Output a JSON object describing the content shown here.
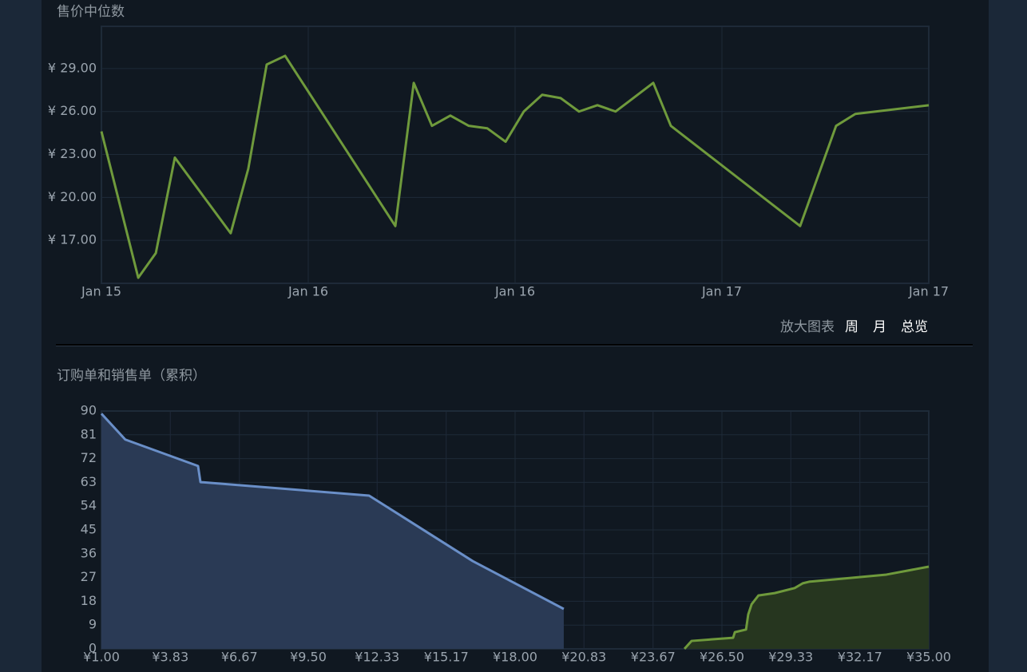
{
  "chart_data": [
    {
      "type": "line",
      "title": "售价中位数",
      "color": "#6f9a3c",
      "grid": true,
      "x": [
        0,
        0.178,
        0.263,
        0.355,
        0.625,
        0.71,
        0.799,
        0.888,
        1.421,
        1.51,
        1.598,
        1.687,
        1.776,
        1.865,
        1.954,
        2.042,
        2.131,
        2.22,
        2.309,
        2.398,
        2.486,
        2.668,
        2.753,
        3.378,
        3.552,
        3.645,
        4
      ],
      "values": [
        24.61,
        14.39,
        16.11,
        22.78,
        17.5,
        22.0,
        29.28,
        29.89,
        18.0,
        28.0,
        25.0,
        25.72,
        25.0,
        24.83,
        23.89,
        26.0,
        27.17,
        26.94,
        26.0,
        26.44,
        26.0,
        28.0,
        25.0,
        18.0,
        25.0,
        25.83,
        26.44
      ],
      "xlim": [
        0,
        4
      ],
      "xticks": [
        {
          "value": 0,
          "label": "Jan 15"
        },
        {
          "value": 1,
          "label": "Jan 16"
        },
        {
          "value": 2,
          "label": "Jan 16"
        },
        {
          "value": 3,
          "label": "Jan 17"
        },
        {
          "value": 4,
          "label": "Jan 17"
        }
      ],
      "ylim": [
        14,
        31.95
      ],
      "yticks": [
        {
          "value": 17,
          "label": "¥ 17.00"
        },
        {
          "value": 20,
          "label": "¥ 20.00"
        },
        {
          "value": 23,
          "label": "¥ 23.00"
        },
        {
          "value": 26,
          "label": "¥ 26.00"
        },
        {
          "value": 29,
          "label": "¥ 29.00"
        }
      ]
    },
    {
      "type": "area",
      "title": "订购单和销售单（累积）",
      "grid": true,
      "series": [
        {
          "color": "#6a8fc8",
          "fill": "#2a3a55",
          "x": [
            1,
            1.98,
            4.97,
            5.07,
            12.0,
            16.26,
            20.0
          ],
          "values": [
            89,
            79.2,
            69.2,
            63.1,
            58.0,
            33.2,
            15.1
          ]
        },
        {
          "color": "#6f9a3c",
          "fill": "#26361f",
          "x": [
            24.96,
            25.25,
            26.96,
            27.03,
            27.49,
            27.58,
            27.72,
            28.0,
            28.67,
            29.49,
            29.82,
            30.08,
            33.26,
            35
          ],
          "values": [
            0,
            3.0,
            4.2,
            6.3,
            7.3,
            13.0,
            16.9,
            20.2,
            21.1,
            23.0,
            24.8,
            25.4,
            28.1,
            31.1
          ]
        }
      ],
      "xlim": [
        1,
        35
      ],
      "xticks": [
        {
          "value": 1,
          "label": "¥1.00"
        },
        {
          "value": 3.83,
          "label": "¥3.83"
        },
        {
          "value": 6.67,
          "label": "¥6.67"
        },
        {
          "value": 9.5,
          "label": "¥9.50"
        },
        {
          "value": 12.33,
          "label": "¥12.33"
        },
        {
          "value": 15.17,
          "label": "¥15.17"
        },
        {
          "value": 18,
          "label": "¥18.00"
        },
        {
          "value": 20.83,
          "label": "¥20.83"
        },
        {
          "value": 23.67,
          "label": "¥23.67"
        },
        {
          "value": 26.5,
          "label": "¥26.50"
        },
        {
          "value": 29.33,
          "label": "¥29.33"
        },
        {
          "value": 32.17,
          "label": "¥32.17"
        },
        {
          "value": 35,
          "label": "¥35.00"
        }
      ],
      "ylim": [
        0,
        90
      ],
      "yticks": [
        0,
        9,
        18,
        27,
        36,
        45,
        54,
        63,
        72,
        81,
        90
      ]
    }
  ],
  "controls": {
    "zoom_label": "放大图表",
    "options": [
      "周",
      "月",
      "总览"
    ]
  }
}
